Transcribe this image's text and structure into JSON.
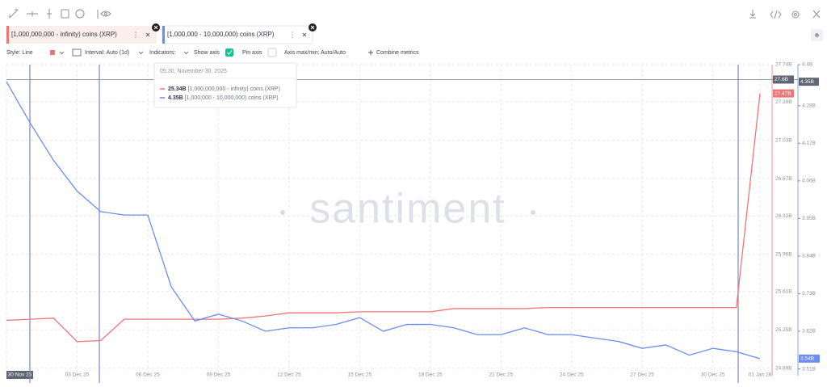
{
  "toolbar": {
    "style": "Style: Line",
    "interval": "Interval: Auto (1d)",
    "indicators": "Indicators:",
    "show_axis": "Show axis",
    "pin_axis": "Pin axis",
    "axis_minmax": "Axis max/min: Auto/Auto",
    "combine": "Combine metrics"
  },
  "chart_data": {
    "type": "line",
    "watermark": "santiment",
    "categories": [
      "30 Nov 25",
      null,
      null,
      "03 Dec 25",
      null,
      null,
      "06 Dec 25",
      null,
      null,
      "09 Dec 25",
      null,
      null,
      "12 Dec 25",
      null,
      null,
      "15 Dec 25",
      null,
      null,
      "18 Dec 25",
      null,
      null,
      "21 Dec 25",
      null,
      null,
      "24 Dec 25",
      null,
      null,
      "27 Dec 25",
      null,
      null,
      "30 Dec 25",
      null,
      "01 Jan 26"
    ],
    "series": [
      {
        "name": "[1,000,000,000 - infinity) coins (XRP)",
        "color": "#f27474",
        "axis": "y",
        "values": [
          25.34,
          25.35,
          25.36,
          25.14,
          25.15,
          25.35,
          25.35,
          25.35,
          25.35,
          25.35,
          25.36,
          25.38,
          25.41,
          25.41,
          25.41,
          25.42,
          25.42,
          25.42,
          25.42,
          25.45,
          25.45,
          25.45,
          25.45,
          25.46,
          25.46,
          25.46,
          25.46,
          25.46,
          25.46,
          25.46,
          25.46,
          25.46,
          27.47
        ]
      },
      {
        "name": "[1,000,000 - 10,000,000) coins (XRP)",
        "color": "#6b8cf0",
        "axis": "y2",
        "values": [
          4.35,
          4.23,
          4.12,
          4.03,
          3.97,
          3.96,
          3.96,
          3.75,
          3.65,
          3.67,
          3.65,
          3.62,
          3.63,
          3.63,
          3.64,
          3.66,
          3.62,
          3.64,
          3.64,
          3.63,
          3.61,
          3.61,
          3.63,
          3.61,
          3.61,
          3.6,
          3.59,
          3.57,
          3.58,
          3.55,
          3.57,
          3.56,
          3.54
        ]
      }
    ],
    "ylim": [
      24.82,
      27.74
    ],
    "yticks": [
      {
        "value": 27.74,
        "label": "27.74B"
      },
      {
        "value": 27.39,
        "label": "27.39B"
      },
      {
        "value": 27.03,
        "label": "27.03B"
      },
      {
        "value": 26.67,
        "label": "26.67B"
      },
      {
        "value": 26.32,
        "label": "26.32B"
      },
      {
        "value": 25.96,
        "label": "25.96B"
      },
      {
        "value": 25.61,
        "label": "25.61B"
      },
      {
        "value": 25.25,
        "label": "25.25B"
      },
      {
        "value": 24.89,
        "label": "24.89B"
      }
    ],
    "y2lim": [
      3.49,
      4.4
    ],
    "y2ticks": [
      {
        "value": 4.4,
        "label": "4.4B"
      },
      {
        "value": 4.28,
        "label": "4.28B"
      },
      {
        "value": 4.17,
        "label": "4.17B"
      },
      {
        "value": 4.06,
        "label": "4.06B"
      },
      {
        "value": 3.95,
        "label": "3.95B"
      },
      {
        "value": 3.84,
        "label": "3.84B"
      },
      {
        "value": 3.73,
        "label": "3.73B"
      },
      {
        "value": 3.62,
        "label": "3.62B"
      },
      {
        "value": 3.51,
        "label": "3.51B"
      }
    ],
    "grid": true,
    "crosshair": {
      "y": {
        "value": 27.6,
        "label": "27.6B"
      },
      "y2": {
        "value": 4.35,
        "label": "4.35B"
      }
    },
    "end_labels": [
      {
        "value": 27.47,
        "label": "27.47B"
      },
      {
        "value": 3.54,
        "label": "3.54B"
      }
    ],
    "tooltip": {
      "title": "05:30, November 30, 2025",
      "labels": [
        "25.34B",
        "4.35B"
      ]
    }
  }
}
